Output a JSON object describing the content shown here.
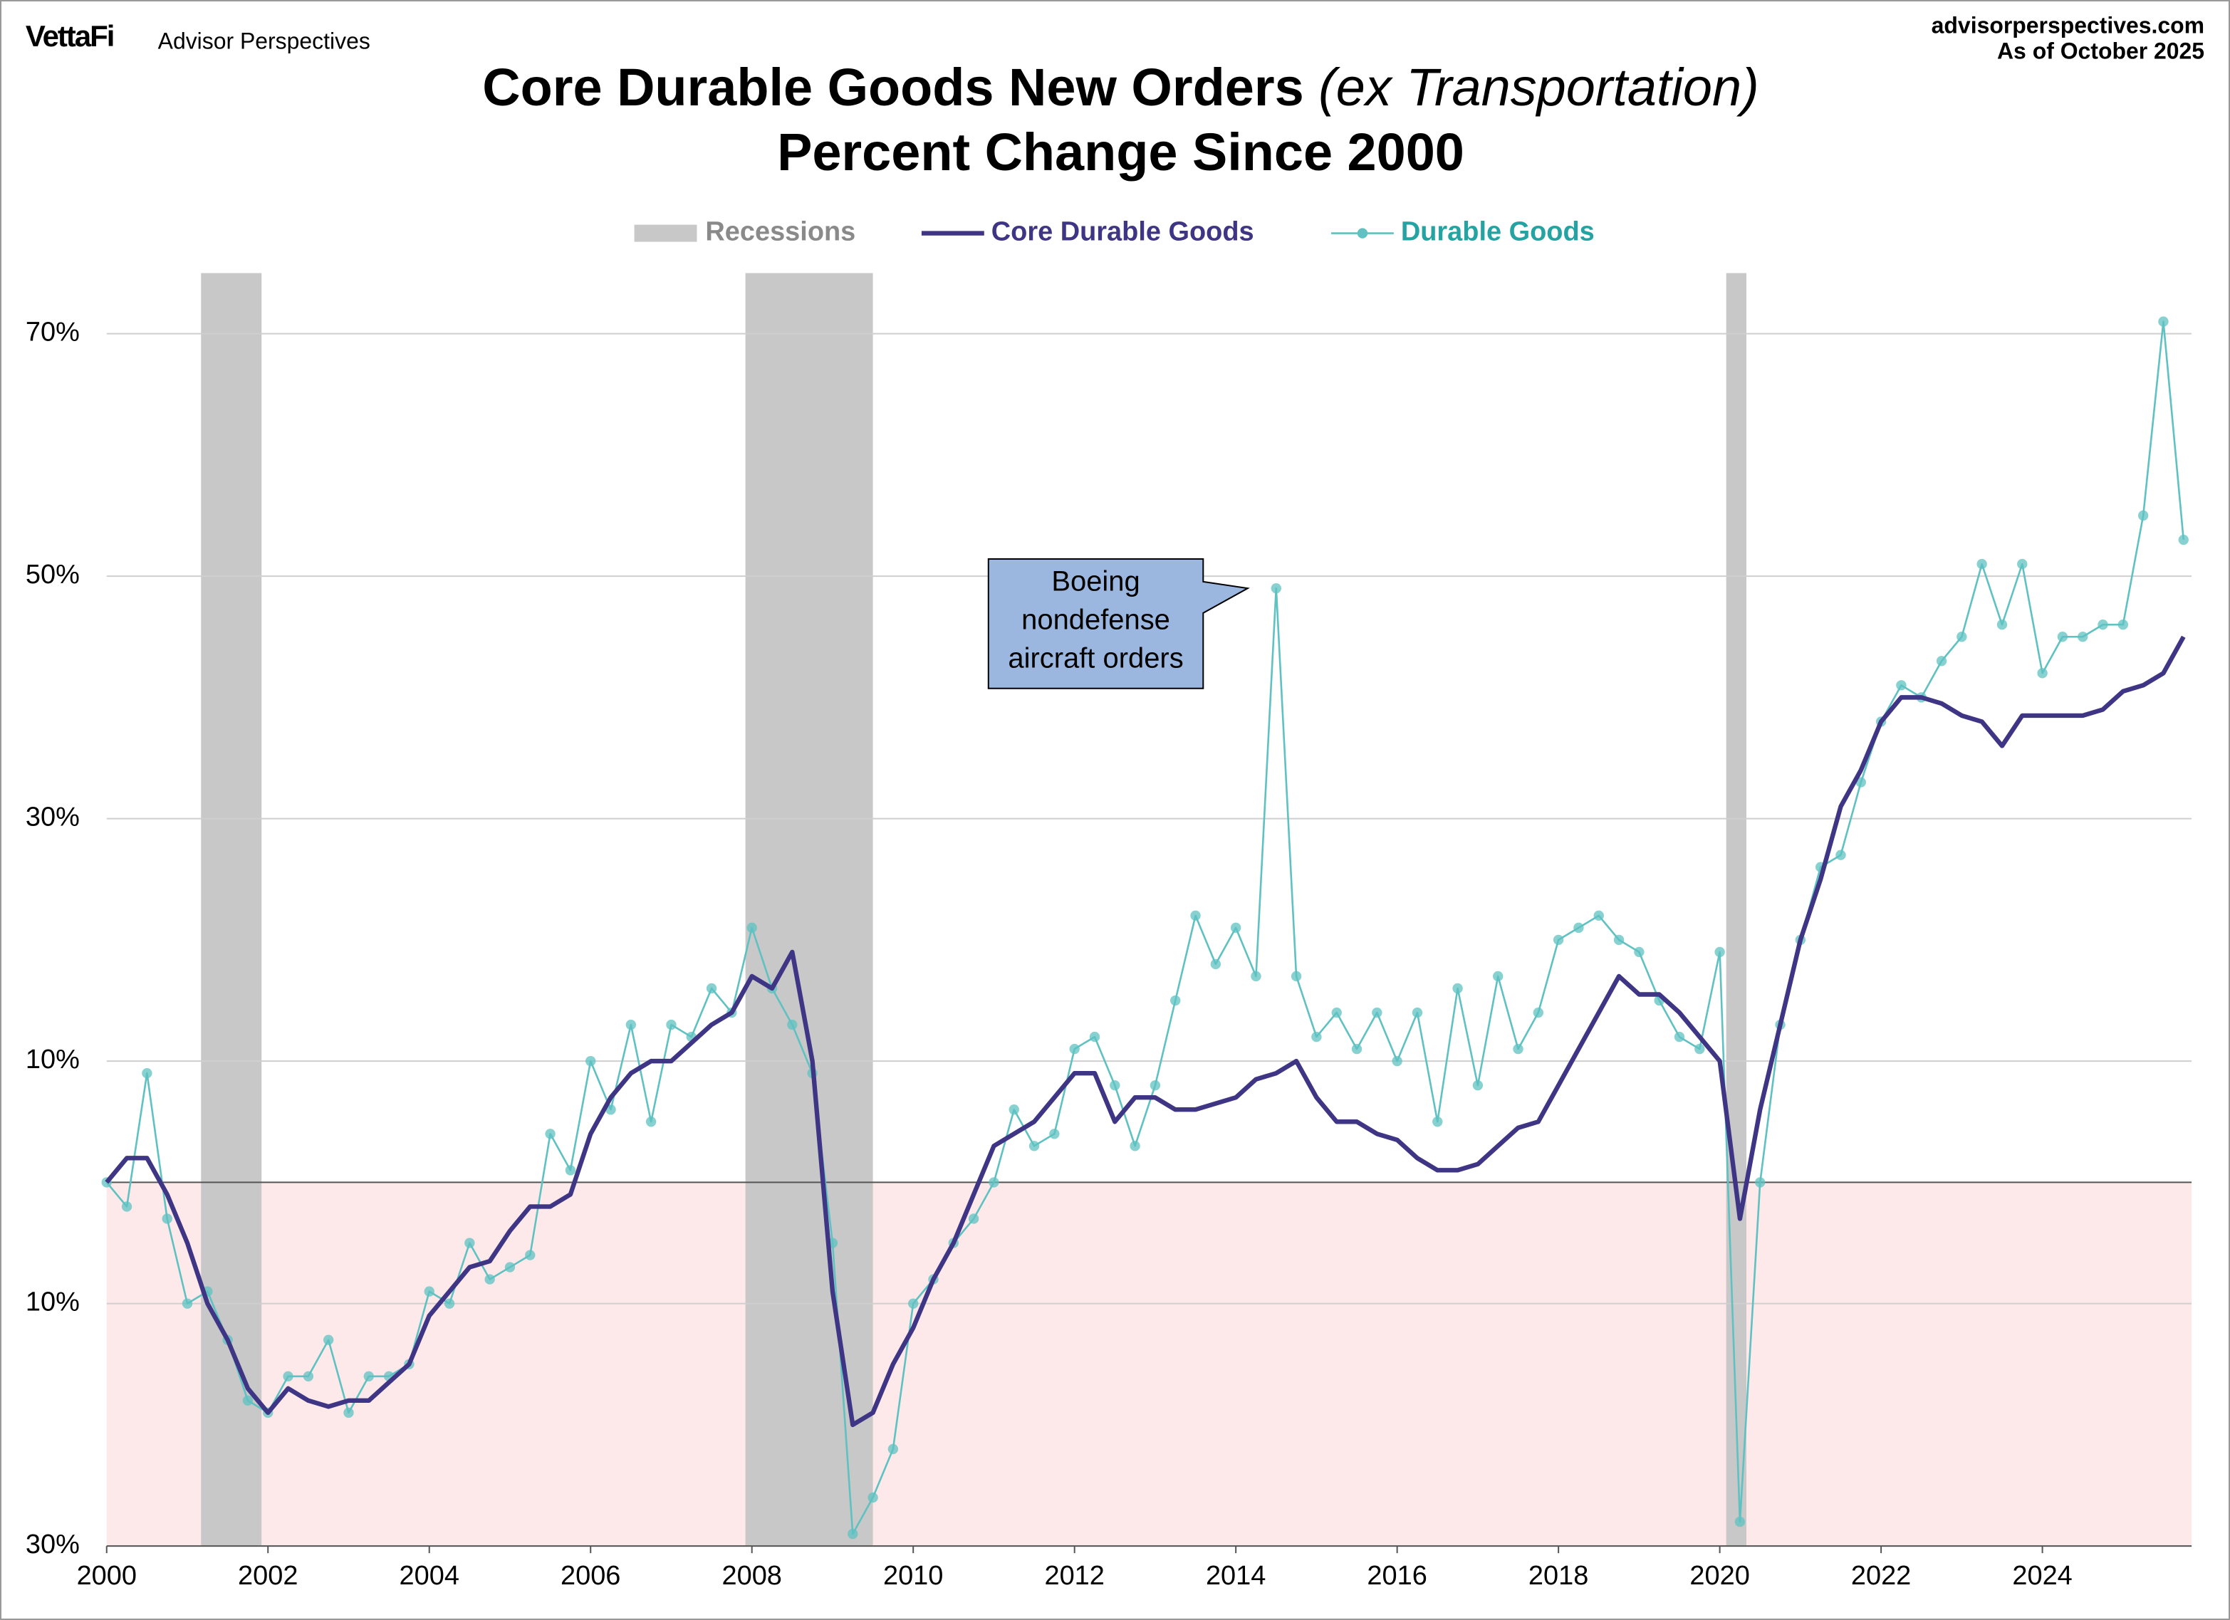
{
  "header": {
    "brand": "VettaFi",
    "brand_sub": "Advisor Perspectives",
    "site": "advisorperspectives.com",
    "as_of": "As of October 2025"
  },
  "chart_data": {
    "type": "line",
    "title": "Core Durable Goods New Orders",
    "title_italic": "(ex Transportation)",
    "subtitle": "Percent Change Since 2000",
    "x": [
      2000,
      2000.25,
      2000.5,
      2000.75,
      2001,
      2001.25,
      2001.5,
      2001.75,
      2002,
      2002.25,
      2002.5,
      2002.75,
      2003,
      2003.25,
      2003.5,
      2003.75,
      2004,
      2004.25,
      2004.5,
      2004.75,
      2005,
      2005.25,
      2005.5,
      2005.75,
      2006,
      2006.25,
      2006.5,
      2006.75,
      2007,
      2007.25,
      2007.5,
      2007.75,
      2008,
      2008.25,
      2008.5,
      2008.75,
      2009,
      2009.25,
      2009.5,
      2009.75,
      2010,
      2010.25,
      2010.5,
      2010.75,
      2011,
      2011.25,
      2011.5,
      2011.75,
      2012,
      2012.25,
      2012.5,
      2012.75,
      2013,
      2013.25,
      2013.5,
      2013.75,
      2014,
      2014.25,
      2014.5,
      2014.75,
      2015,
      2015.25,
      2015.5,
      2015.75,
      2016,
      2016.25,
      2016.5,
      2016.75,
      2017,
      2017.25,
      2017.5,
      2017.75,
      2018,
      2018.25,
      2018.5,
      2018.75,
      2019,
      2019.25,
      2019.5,
      2019.75,
      2020,
      2020.25,
      2020.5,
      2020.75,
      2021,
      2021.25,
      2021.5,
      2021.75,
      2022,
      2022.25,
      2022.5,
      2022.75,
      2023,
      2023.25,
      2023.5,
      2023.75,
      2024,
      2024.25,
      2024.5,
      2024.75,
      2025,
      2025.25,
      2025.5,
      2025.75
    ],
    "series": [
      {
        "name": "Durable Goods",
        "color": "#5fc1c1",
        "label_color": "#25a3a3",
        "markers": true,
        "values": [
          0,
          -2,
          9,
          -3,
          -10,
          -9,
          -13,
          -18,
          -19,
          -16,
          -16,
          -13,
          -19,
          -16,
          -16,
          -15,
          -9,
          -10,
          -5,
          -8,
          -7,
          -6,
          4,
          1,
          10,
          6,
          13,
          5,
          13,
          12,
          16,
          14,
          21,
          16,
          13,
          9,
          -5,
          -29,
          -26,
          -22,
          -10,
          -8,
          -5,
          -3,
          0,
          6,
          3,
          4,
          11,
          12,
          8,
          3,
          8,
          15,
          22,
          18,
          21,
          17,
          49,
          17,
          12,
          14,
          11,
          14,
          10,
          14,
          5,
          16,
          8,
          17,
          11,
          14,
          20,
          21,
          22,
          20,
          19,
          15,
          12,
          11,
          19,
          -28,
          0,
          13,
          20,
          26,
          27,
          33,
          38,
          41,
          40,
          43,
          45,
          51,
          46,
          51,
          42,
          45,
          45,
          46,
          46,
          55,
          71,
          53
        ]
      },
      {
        "name": "Core Durable Goods",
        "color": "#3f3585",
        "label_color": "#3f3585",
        "markers": false,
        "values": [
          0,
          2,
          2,
          -1,
          -5,
          -10,
          -13,
          -17,
          -19,
          -17,
          -18,
          -18.5,
          -18,
          -18,
          -16.5,
          -15,
          -11,
          -9,
          -7,
          -6.5,
          -4,
          -2,
          -2,
          -1,
          4,
          7,
          9,
          10,
          10,
          11.5,
          13,
          14,
          17,
          16,
          19,
          10,
          -9,
          -20,
          -19,
          -15,
          -12,
          -8,
          -5,
          -1,
          3,
          4,
          5,
          7,
          9,
          9,
          5,
          7,
          7,
          6,
          6,
          6.5,
          7,
          8.5,
          9,
          10,
          7,
          5,
          5,
          4,
          3.5,
          2,
          1,
          1,
          1.5,
          3,
          4.5,
          5,
          8,
          11,
          14,
          17,
          15.5,
          15.5,
          14,
          12,
          10,
          -3,
          6,
          13,
          20,
          25,
          31,
          34,
          38,
          40,
          40,
          39.5,
          38.5,
          38,
          36,
          38.5,
          38.5,
          38.5,
          38.5,
          39,
          40.5,
          41,
          42,
          45
        ]
      }
    ],
    "recessions_label": "Recessions",
    "recession_color": "#c8c8c8",
    "recession_label_color": "#8a8a8a",
    "recessions": [
      [
        2001.17,
        2001.92
      ],
      [
        2007.92,
        2009.5
      ],
      [
        2020.08,
        2020.33
      ]
    ],
    "annotation": {
      "lines": [
        "Boeing",
        "nondefense",
        "aircraft orders"
      ],
      "x": 2014.5,
      "y": 49,
      "fill": "#9bb7e0"
    },
    "xlim": [
      2000,
      2025.85
    ],
    "xticks": [
      2000,
      2002,
      2004,
      2006,
      2008,
      2010,
      2012,
      2014,
      2016,
      2018,
      2020,
      2022,
      2024
    ],
    "ylim": [
      -30,
      75
    ],
    "yticks": [
      {
        "value": -30,
        "label": "30%"
      },
      {
        "value": -10,
        "label": "10%"
      },
      {
        "value": 10,
        "label": "10%"
      },
      {
        "value": 30,
        "label": "30%"
      },
      {
        "value": 50,
        "label": "50%"
      },
      {
        "value": 70,
        "label": "70%"
      }
    ],
    "grid": true,
    "negative_tick_color": "#e00000",
    "negative_shade": "#fde9ea"
  }
}
